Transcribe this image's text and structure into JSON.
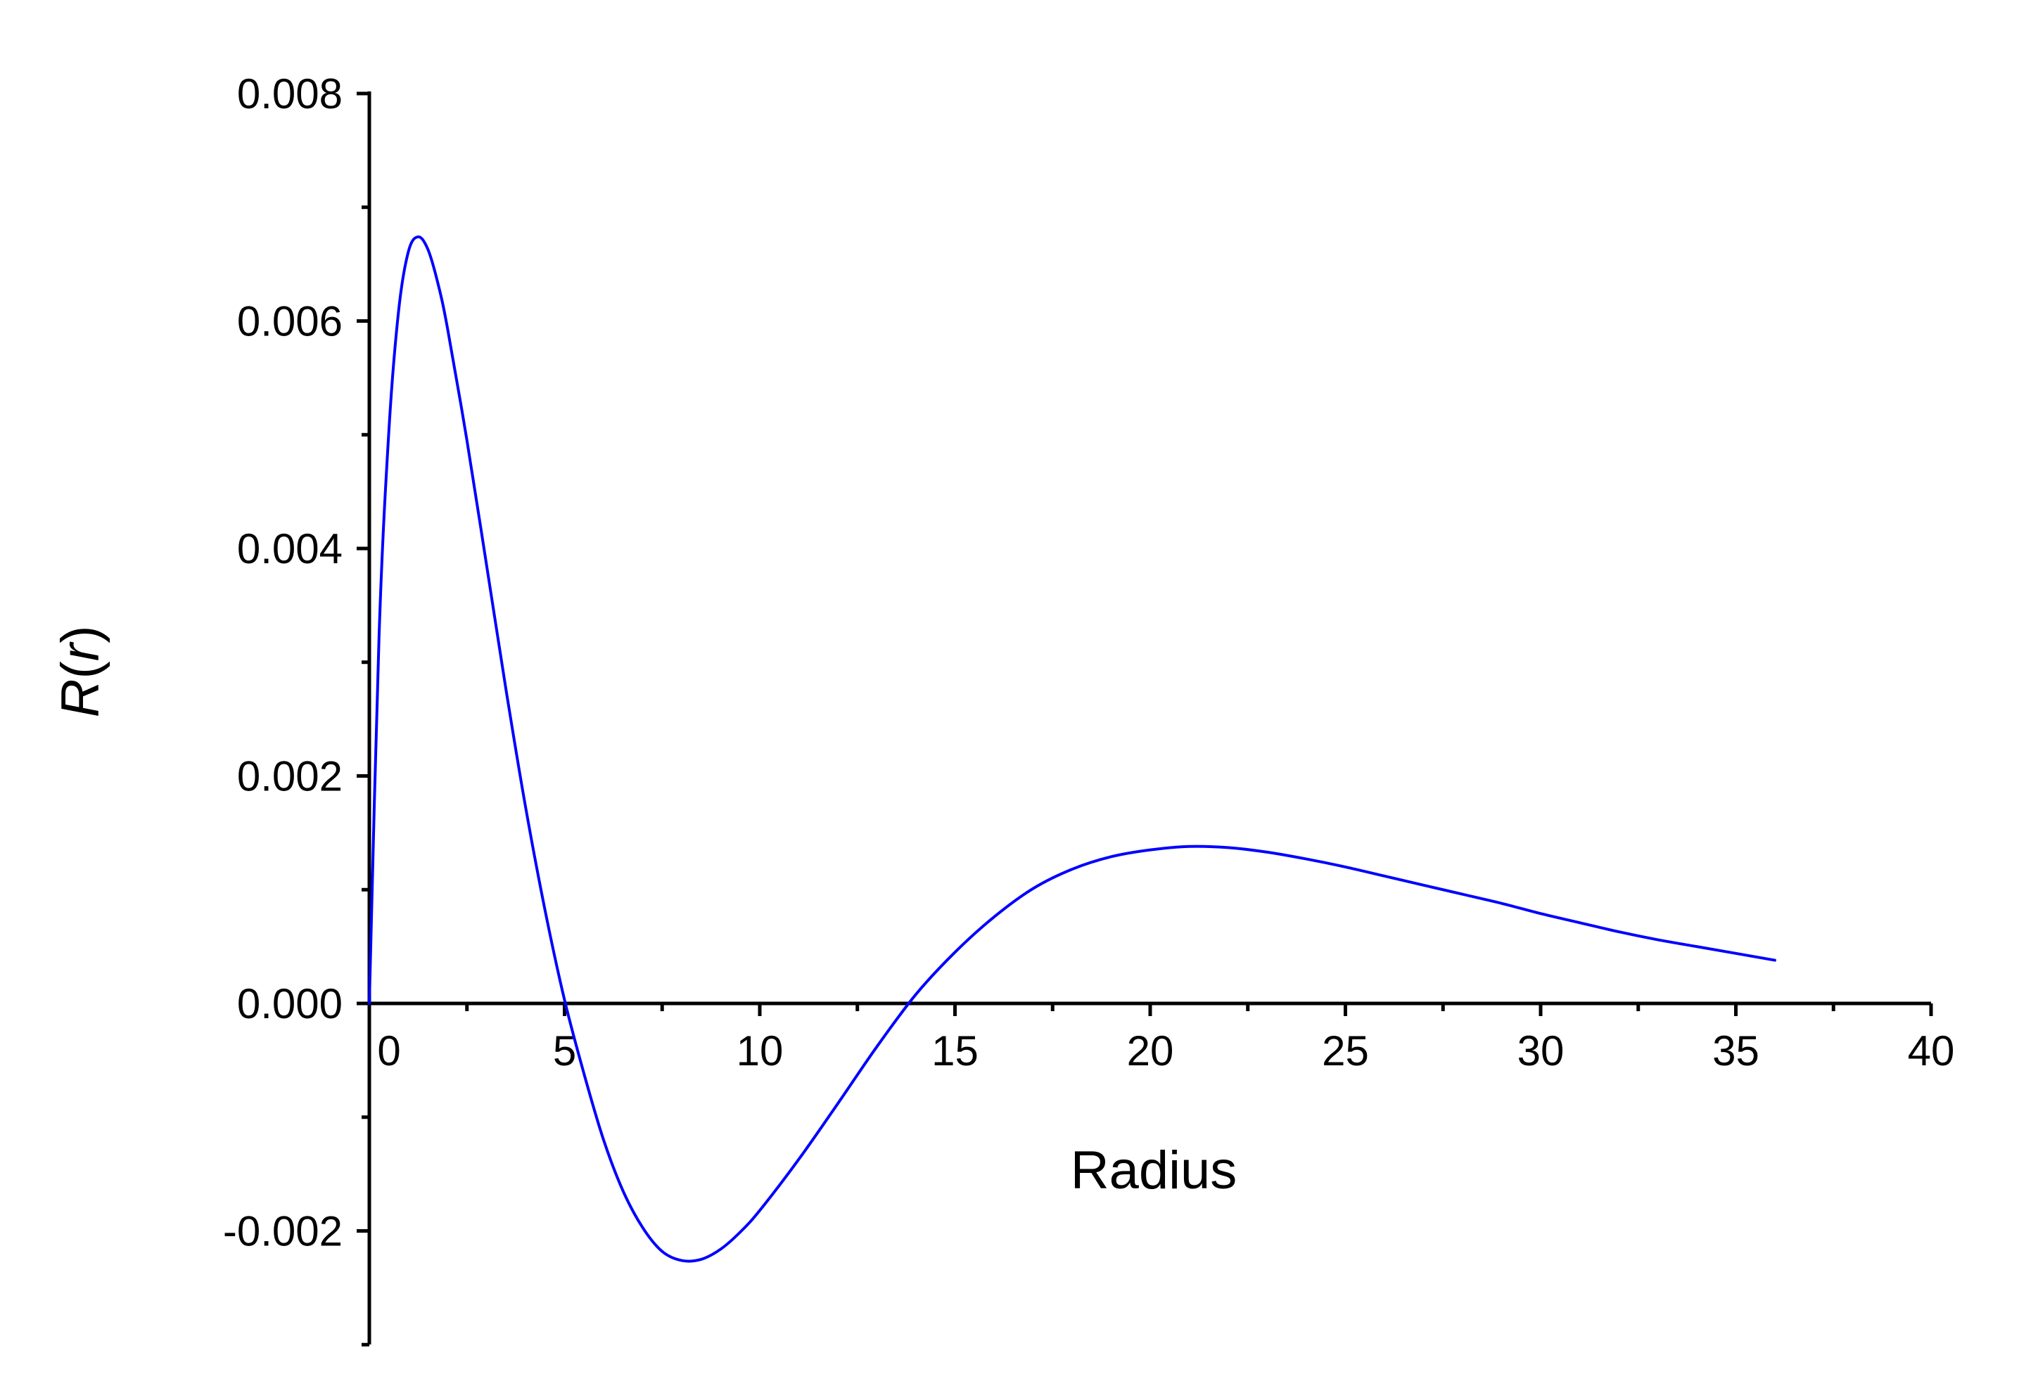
{
  "chart_data": {
    "type": "line",
    "title": "",
    "xlabel": "Radius",
    "ylabel": "R(r)",
    "xlim": [
      -0.5,
      40
    ],
    "ylim": [
      -0.003,
      0.008
    ],
    "x_ticks": [
      0,
      5,
      10,
      15,
      20,
      25,
      30,
      35,
      40
    ],
    "x_tick_labels": [
      "0",
      "5",
      "10",
      "15",
      "20",
      "25",
      "30",
      "35",
      "40"
    ],
    "y_ticks": [
      -0.002,
      0.0,
      0.002,
      0.004,
      0.006,
      0.008
    ],
    "y_tick_labels": [
      "-0.002",
      "0.000",
      "0.002",
      "0.004",
      "0.006",
      "0.008"
    ],
    "grid": false,
    "legend": "none",
    "line_color": "#0000ff",
    "axis_color": "#000000",
    "series": [
      {
        "x": [
          0,
          0.25,
          0.5,
          0.75,
          1.0,
          1.25,
          1.5,
          1.75,
          2.0,
          2.5,
          3.0,
          3.5,
          4.0,
          4.5,
          5.0,
          5.5,
          6.0,
          6.5,
          7.0,
          7.5,
          8.0,
          8.5,
          9.0,
          9.5,
          10.0,
          11.0,
          12.0,
          13.0,
          14.0,
          15.0,
          16.0,
          17.0,
          18.0,
          19.0,
          20.0,
          21.0,
          22.0,
          23.0,
          24.0,
          25.0,
          26.0,
          27.0,
          28.0,
          29.0,
          30.0,
          31.0,
          32.0,
          33.0,
          34.0,
          35.0,
          36.0
        ],
        "y": [
          0.0,
          0.00324,
          0.00503,
          0.00609,
          0.00661,
          0.00674,
          0.00663,
          0.00634,
          0.00594,
          0.00495,
          0.00386,
          0.00276,
          0.00173,
          0.00082,
          3e-05,
          -0.00062,
          -0.0012,
          -0.00165,
          -0.00197,
          -0.00218,
          -0.00226,
          -0.00225,
          -0.00216,
          -0.00201,
          -0.00182,
          -0.00137,
          -0.00088,
          -0.00038,
          8e-05,
          0.00045,
          0.00076,
          0.00101,
          0.00118,
          0.00129,
          0.00135,
          0.00138,
          0.00137,
          0.00133,
          0.00127,
          0.0012,
          0.00112,
          0.00104,
          0.00096,
          0.00088,
          0.00079,
          0.00071,
          0.00063,
          0.00056,
          0.0005,
          0.00044,
          0.00038
        ]
      }
    ]
  }
}
